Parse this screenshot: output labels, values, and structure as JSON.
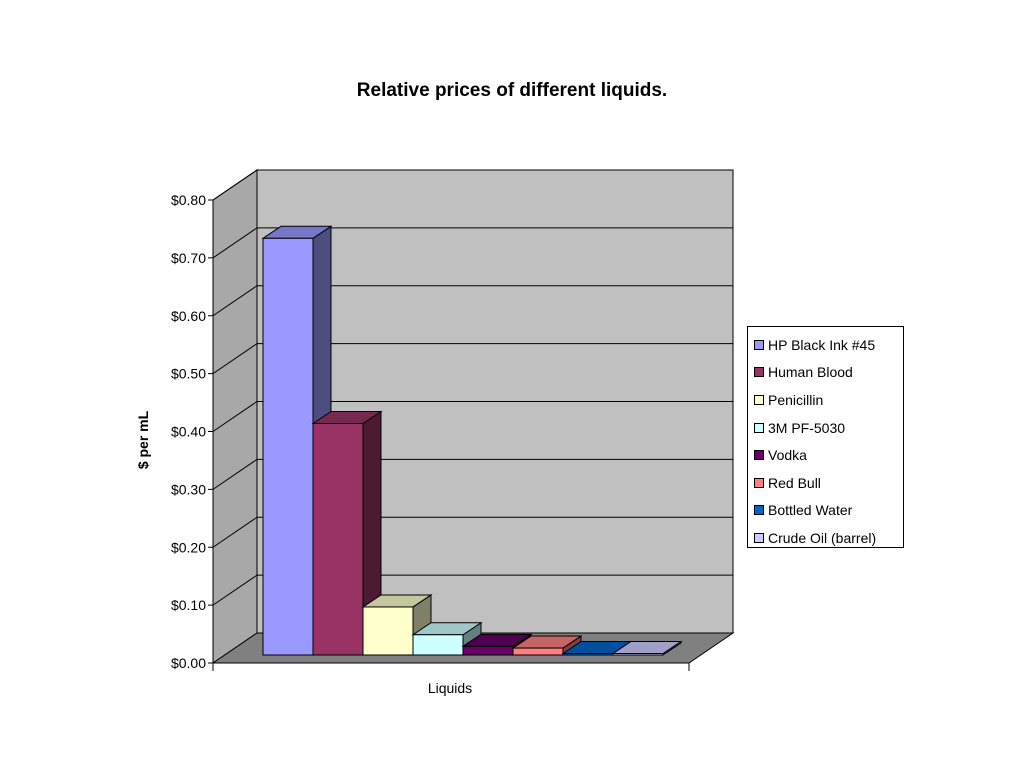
{
  "chart_data": {
    "type": "bar",
    "title": "Relative prices of different liquids.",
    "xlabel": "Liquids",
    "ylabel": "$ per mL",
    "ylim": [
      0,
      0.8
    ],
    "ytick_step": 0.1,
    "yticks": [
      "$0.00",
      "$0.10",
      "$0.20",
      "$0.30",
      "$0.40",
      "$0.50",
      "$0.60",
      "$0.70",
      "$0.80"
    ],
    "grid": true,
    "three_d": true,
    "legend_position": "right",
    "categories": [
      "Liquids"
    ],
    "series": [
      {
        "name": "HP Black Ink #45",
        "values": [
          0.72
        ],
        "color": "#9999ff"
      },
      {
        "name": "Human Blood",
        "values": [
          0.4
        ],
        "color": "#993366"
      },
      {
        "name": "Penicillin",
        "values": [
          0.083
        ],
        "color": "#ffffcc"
      },
      {
        "name": "3M PF-5030",
        "values": [
          0.035
        ],
        "color": "#ccffff"
      },
      {
        "name": "Vodka",
        "values": [
          0.015
        ],
        "color": "#660066"
      },
      {
        "name": "Red Bull",
        "values": [
          0.012
        ],
        "color": "#ff8080"
      },
      {
        "name": "Bottled Water",
        "values": [
          0.002
        ],
        "color": "#0066cc"
      },
      {
        "name": "Crude Oil (barrel)",
        "values": [
          0.0003
        ],
        "color": "#ccccff"
      }
    ],
    "colors": {
      "wall": "#c0c0c0",
      "floor": "#808080",
      "side_wall": "#a8a8a8"
    }
  }
}
